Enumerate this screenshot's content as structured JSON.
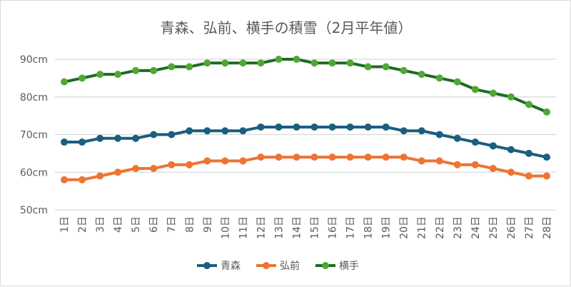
{
  "chart_data": {
    "type": "line",
    "title": "青森、弘前、横手の積雪（2月平年値）",
    "categories": [
      "1日",
      "2日",
      "3日",
      "4日",
      "5日",
      "6日",
      "7日",
      "8日",
      "9日",
      "10日",
      "11日",
      "12日",
      "13日",
      "14日",
      "15日",
      "16日",
      "17日",
      "18日",
      "19日",
      "20日",
      "21日",
      "22日",
      "23日",
      "24日",
      "25日",
      "26日",
      "27日",
      "28日"
    ],
    "ylim": [
      50,
      90
    ],
    "yticks": [
      "50cm",
      "60cm",
      "70cm",
      "80cm",
      "90cm"
    ],
    "grid": true,
    "legend": "bottom",
    "series": [
      {
        "name": "青森",
        "color": "#1a5e80",
        "values": [
          68,
          68,
          69,
          69,
          69,
          70,
          70,
          71,
          71,
          71,
          71,
          72,
          72,
          72,
          72,
          72,
          72,
          72,
          72,
          71,
          71,
          70,
          69,
          68,
          67,
          66,
          65,
          64
        ]
      },
      {
        "name": "弘前",
        "color": "#ed7432",
        "values": [
          58,
          58,
          59,
          60,
          61,
          61,
          62,
          62,
          63,
          63,
          63,
          64,
          64,
          64,
          64,
          64,
          64,
          64,
          64,
          64,
          63,
          63,
          62,
          62,
          61,
          60,
          59,
          59
        ]
      },
      {
        "name": "横手",
        "color": "#1e6b22",
        "marker": "#4fa832",
        "values": [
          84,
          85,
          86,
          86,
          87,
          87,
          88,
          88,
          89,
          89,
          89,
          89,
          90,
          90,
          89,
          89,
          89,
          88,
          88,
          87,
          86,
          85,
          84,
          82,
          81,
          80,
          78,
          76
        ]
      }
    ]
  }
}
